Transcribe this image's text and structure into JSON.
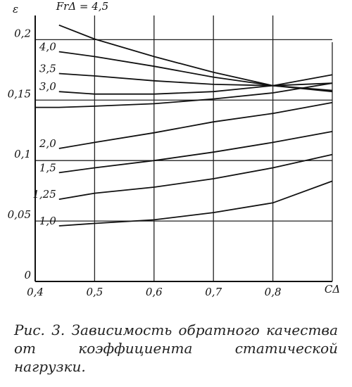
{
  "chart_data": {
    "type": "line",
    "x_label": "CΔ",
    "y_label": "ε",
    "x": [
      0.4,
      0.44,
      0.5,
      0.6,
      0.7,
      0.8,
      0.9
    ],
    "series": [
      {
        "name": "FrΔ = 4,5",
        "color": "#111",
        "values": [
          null,
          0.212,
          0.2005,
          0.186,
          0.173,
          0.162,
          0.157
        ]
      },
      {
        "name": "4,0",
        "color": "#111",
        "values": [
          null,
          0.19,
          0.186,
          0.178,
          0.169,
          0.162,
          0.158
        ]
      },
      {
        "name": "3,5",
        "color": "#111",
        "values": [
          null,
          0.172,
          0.17,
          0.166,
          0.163,
          0.162,
          0.164
        ]
      },
      {
        "name": "3,0",
        "color": "#111",
        "values": [
          null,
          0.157,
          0.155,
          0.155,
          0.157,
          0.162,
          0.171
        ]
      },
      {
        "name": null,
        "color": "#111",
        "values": [
          0.144,
          0.144,
          0.145,
          0.147,
          0.151,
          0.156,
          0.164
        ]
      },
      {
        "name": "2,0",
        "color": "#111",
        "values": [
          null,
          0.11,
          0.115,
          0.123,
          0.132,
          0.139,
          0.148
        ]
      },
      {
        "name": "1,5",
        "color": "#111",
        "values": [
          null,
          0.09,
          0.094,
          0.1,
          0.107,
          0.115,
          0.124
        ]
      },
      {
        "name": "1,25",
        "color": "#111",
        "values": [
          null,
          0.068,
          0.073,
          0.078,
          0.085,
          0.094,
          0.105
        ]
      },
      {
        "name": "1,0",
        "color": "#111",
        "values": [
          null,
          0.046,
          0.048,
          0.051,
          0.057,
          0.065,
          0.083
        ]
      }
    ],
    "xlim": [
      0.4,
      0.9
    ],
    "ylim": [
      0,
      0.22
    ],
    "xticks": [
      {
        "value": 0.4,
        "label": "0,4"
      },
      {
        "value": 0.5,
        "label": "0,5"
      },
      {
        "value": 0.6,
        "label": "0,6"
      },
      {
        "value": 0.7,
        "label": "0,7"
      },
      {
        "value": 0.8,
        "label": "0,8"
      }
    ],
    "yticks": [
      0,
      {
        "value": 0.05,
        "label": "0,05"
      },
      {
        "value": 0.1,
        "label": "0,1"
      },
      {
        "value": 0.15,
        "label": "0,15"
      },
      {
        "value": 0.2,
        "label": "0,2"
      }
    ],
    "grid": true,
    "caption": "Рис. 3. Зависимость обратного качества от коэффициента статической нагрузки."
  }
}
